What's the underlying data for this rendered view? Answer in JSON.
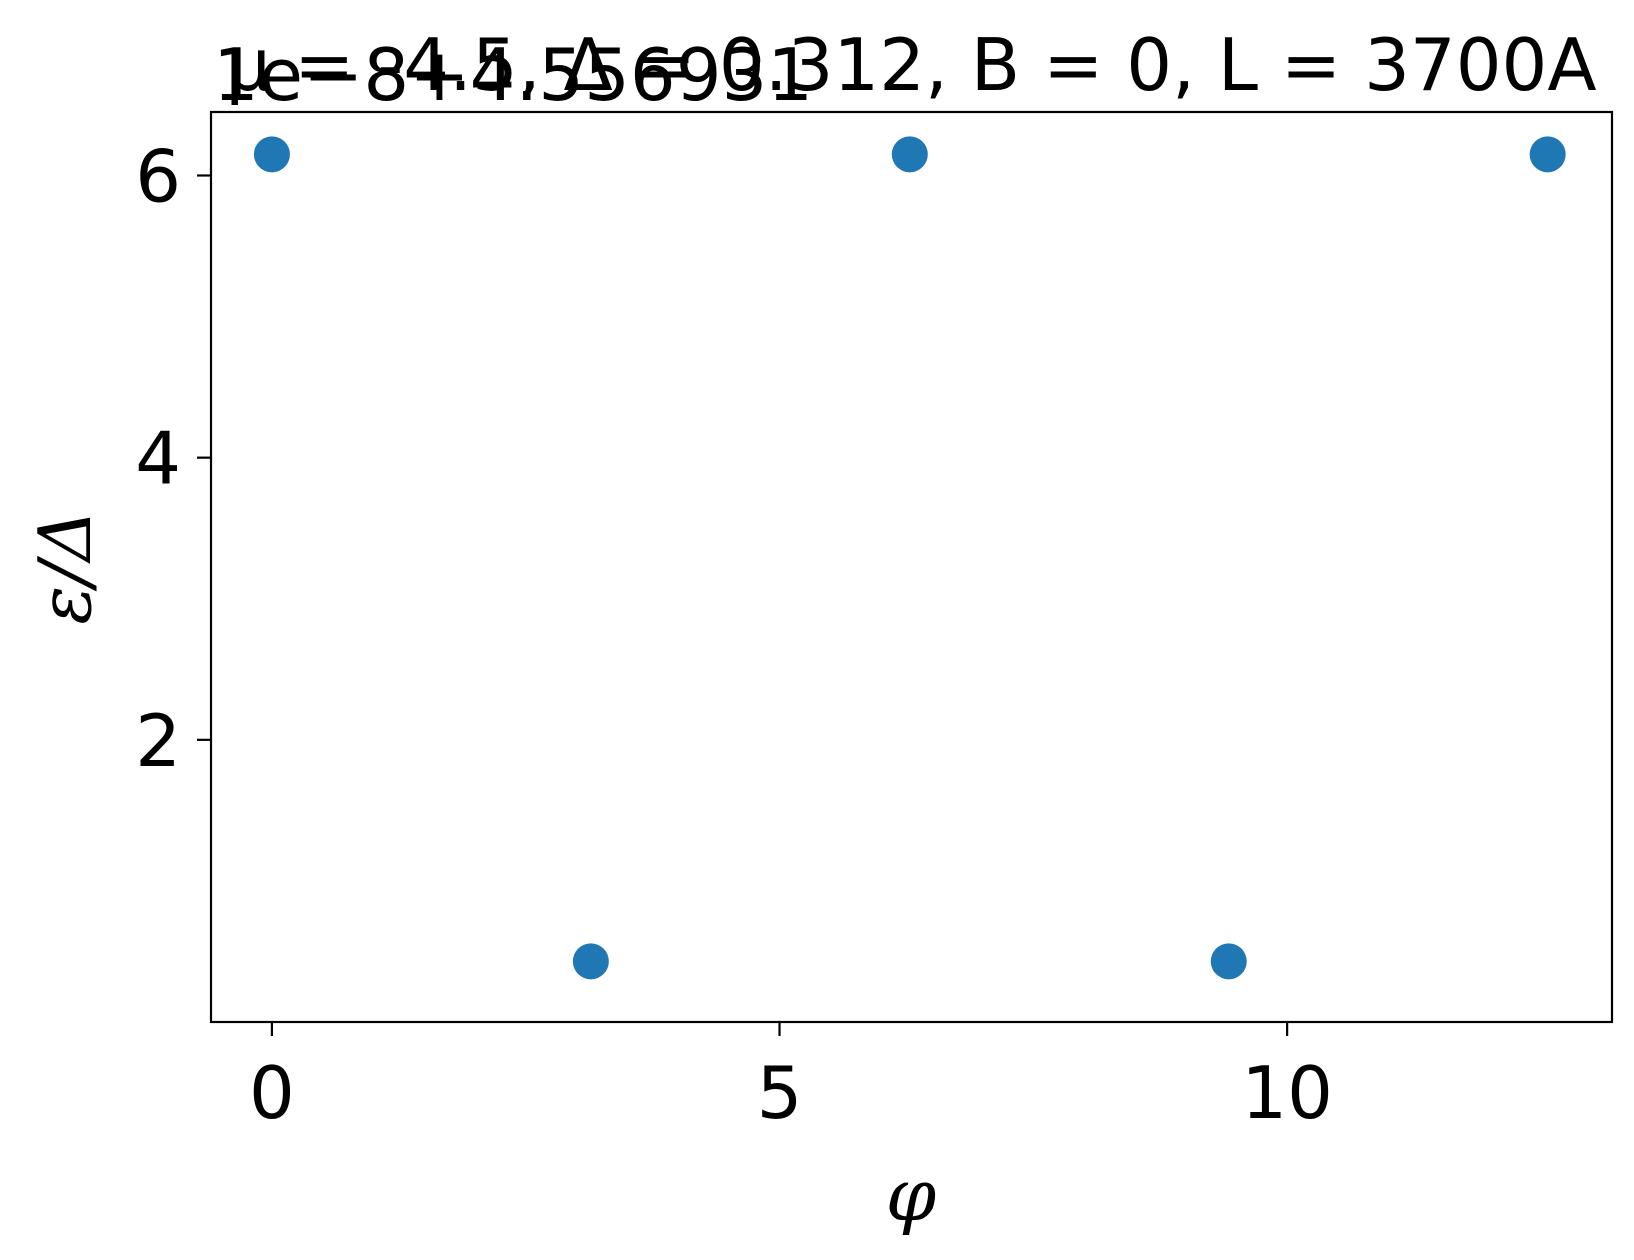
{
  "chart_data": {
    "type": "scatter",
    "title": "μ = -4.5, Δ = 0.312, B = 0, L = 3700A",
    "y_offset_text": "1e−8+4.556931",
    "xlabel": "φ",
    "ylabel": "ε/Δ",
    "xlim": [
      -0.6,
      13.2
    ],
    "ylim": [
      0.0,
      6.45
    ],
    "xticks": [
      0,
      5,
      10
    ],
    "xtick_labels": [
      "0",
      "5",
      "10"
    ],
    "yticks": [
      2,
      4,
      6
    ],
    "ytick_labels": [
      "2",
      "4",
      "6"
    ],
    "grid": false,
    "legend": "none",
    "marker_color": "#1f77b4",
    "series": [
      {
        "x": [
          0.0,
          3.1416,
          6.2832,
          9.4248,
          12.5664
        ],
        "y": [
          6.15,
          0.43,
          6.15,
          0.43,
          6.15
        ]
      }
    ]
  }
}
